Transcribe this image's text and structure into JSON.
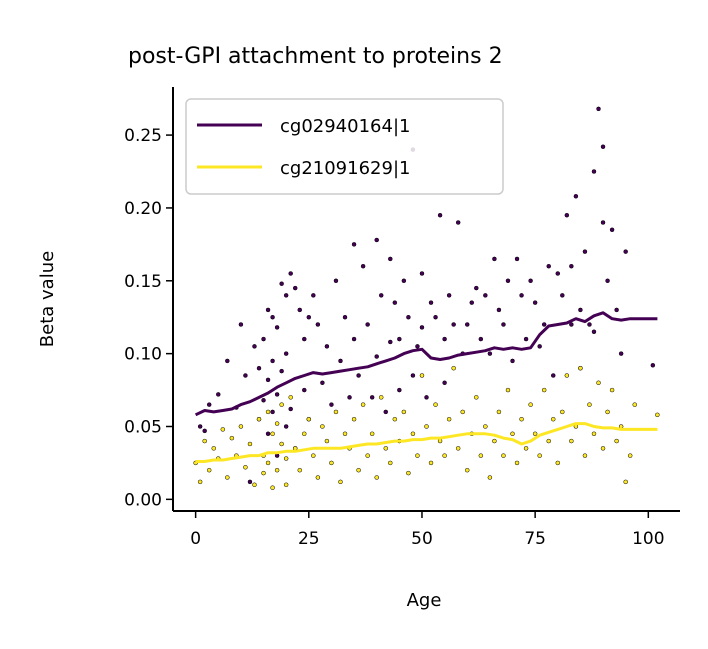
{
  "chart_data": {
    "type": "scatter",
    "title": "post-GPI attachment to proteins 2",
    "xlabel": "Age",
    "ylabel": "Beta value",
    "xlim": [
      -5,
      107
    ],
    "ylim": [
      -0.008,
      0.283
    ],
    "xticks": [
      0,
      25,
      50,
      75,
      100
    ],
    "xtick_labels": [
      "0",
      "25",
      "50",
      "75",
      "100"
    ],
    "yticks": [
      0.0,
      0.05,
      0.1,
      0.15,
      0.2,
      0.25
    ],
    "ytick_labels": [
      "0.00",
      "0.05",
      "0.10",
      "0.15",
      "0.20",
      "0.25"
    ],
    "grid": false,
    "legend_position": "top-left",
    "series": [
      {
        "name": "cg02940164|1",
        "color": "#440154",
        "trend": {
          "x": [
            0,
            2,
            4,
            6,
            8,
            10,
            12,
            14,
            16,
            18,
            20,
            22,
            24,
            26,
            28,
            30,
            32,
            34,
            36,
            38,
            40,
            42,
            44,
            46,
            48,
            50,
            52,
            54,
            56,
            58,
            60,
            62,
            64,
            66,
            68,
            70,
            72,
            74,
            76,
            78,
            80,
            82,
            84,
            86,
            88,
            90,
            92,
            94,
            96,
            98,
            100,
            102
          ],
          "y": [
            0.058,
            0.061,
            0.06,
            0.061,
            0.062,
            0.065,
            0.067,
            0.07,
            0.073,
            0.077,
            0.08,
            0.083,
            0.085,
            0.087,
            0.086,
            0.087,
            0.088,
            0.089,
            0.09,
            0.091,
            0.093,
            0.095,
            0.097,
            0.1,
            0.102,
            0.103,
            0.097,
            0.096,
            0.097,
            0.099,
            0.1,
            0.101,
            0.102,
            0.104,
            0.103,
            0.104,
            0.103,
            0.104,
            0.113,
            0.119,
            0.12,
            0.121,
            0.124,
            0.122,
            0.126,
            0.128,
            0.124,
            0.123,
            0.124,
            0.124,
            0.124,
            0.124
          ]
        },
        "points": {
          "x": [
            1,
            2,
            3,
            5,
            7,
            9,
            10,
            11,
            12,
            13,
            14,
            14,
            15,
            15,
            16,
            16,
            16,
            17,
            17,
            17,
            18,
            18,
            18,
            19,
            19,
            20,
            20,
            20,
            21,
            21,
            22,
            22,
            23,
            24,
            24,
            25,
            25,
            26,
            27,
            28,
            29,
            30,
            31,
            32,
            33,
            34,
            35,
            35,
            36,
            37,
            38,
            39,
            40,
            40,
            41,
            42,
            43,
            43,
            44,
            45,
            45,
            46,
            47,
            48,
            48,
            49,
            50,
            50,
            51,
            52,
            53,
            54,
            55,
            55,
            56,
            57,
            58,
            59,
            60,
            61,
            62,
            63,
            64,
            65,
            66,
            67,
            68,
            69,
            70,
            71,
            72,
            73,
            74,
            75,
            76,
            77,
            78,
            79,
            80,
            81,
            82,
            83,
            83,
            84,
            85,
            85,
            86,
            87,
            88,
            88,
            89,
            90,
            90,
            91,
            92,
            93,
            94,
            95,
            101
          ],
          "y": [
            0.05,
            0.047,
            0.065,
            0.072,
            0.095,
            0.063,
            0.12,
            0.085,
            0.012,
            0.105,
            0.09,
            0.055,
            0.11,
            0.068,
            0.13,
            0.082,
            0.045,
            0.125,
            0.095,
            0.06,
            0.118,
            0.072,
            0.03,
            0.148,
            0.088,
            0.14,
            0.1,
            0.05,
            0.155,
            0.062,
            0.145,
            0.035,
            0.13,
            0.11,
            0.075,
            0.125,
            0.055,
            0.14,
            0.12,
            0.08,
            0.105,
            0.065,
            0.15,
            0.095,
            0.125,
            0.07,
            0.175,
            0.11,
            0.085,
            0.16,
            0.12,
            0.07,
            0.178,
            0.098,
            0.14,
            0.06,
            0.165,
            0.108,
            0.135,
            0.11,
            0.075,
            0.15,
            0.125,
            0.24,
            0.085,
            0.105,
            0.155,
            0.118,
            0.07,
            0.135,
            0.125,
            0.195,
            0.11,
            0.08,
            0.14,
            0.12,
            0.19,
            0.1,
            0.12,
            0.135,
            0.145,
            0.11,
            0.14,
            0.1,
            0.165,
            0.13,
            0.12,
            0.15,
            0.095,
            0.165,
            0.14,
            0.11,
            0.15,
            0.135,
            0.105,
            0.12,
            0.16,
            0.085,
            0.155,
            0.14,
            0.195,
            0.16,
            0.12,
            0.208,
            0.13,
            0.09,
            0.17,
            0.12,
            0.225,
            0.115,
            0.268,
            0.19,
            0.242,
            0.15,
            0.185,
            0.13,
            0.1,
            0.17,
            0.092
          ]
        }
      },
      {
        "name": "cg21091629|1",
        "color": "#fde725",
        "trend": {
          "x": [
            0,
            2,
            4,
            6,
            8,
            10,
            12,
            14,
            16,
            18,
            20,
            22,
            24,
            26,
            28,
            30,
            32,
            34,
            36,
            38,
            40,
            42,
            44,
            46,
            48,
            50,
            52,
            54,
            56,
            58,
            60,
            62,
            64,
            66,
            68,
            70,
            72,
            74,
            76,
            78,
            80,
            82,
            84,
            86,
            88,
            90,
            92,
            94,
            96,
            98,
            100,
            102
          ],
          "y": [
            0.026,
            0.026,
            0.027,
            0.027,
            0.028,
            0.029,
            0.03,
            0.03,
            0.032,
            0.032,
            0.033,
            0.033,
            0.034,
            0.035,
            0.035,
            0.035,
            0.035,
            0.036,
            0.037,
            0.038,
            0.038,
            0.039,
            0.04,
            0.04,
            0.041,
            0.041,
            0.042,
            0.042,
            0.043,
            0.044,
            0.045,
            0.045,
            0.045,
            0.044,
            0.042,
            0.041,
            0.038,
            0.04,
            0.044,
            0.046,
            0.048,
            0.05,
            0.052,
            0.052,
            0.05,
            0.049,
            0.049,
            0.048,
            0.048,
            0.048,
            0.048,
            0.048
          ]
        },
        "points": {
          "x": [
            0,
            1,
            2,
            3,
            4,
            5,
            6,
            7,
            8,
            9,
            10,
            11,
            12,
            13,
            14,
            15,
            15,
            16,
            16,
            17,
            17,
            18,
            18,
            19,
            19,
            20,
            20,
            21,
            22,
            23,
            24,
            25,
            26,
            27,
            28,
            29,
            30,
            31,
            32,
            33,
            34,
            35,
            36,
            37,
            38,
            39,
            40,
            41,
            42,
            43,
            44,
            45,
            46,
            47,
            48,
            49,
            50,
            51,
            52,
            53,
            54,
            55,
            56,
            57,
            58,
            59,
            60,
            61,
            62,
            63,
            64,
            65,
            66,
            67,
            68,
            69,
            70,
            71,
            72,
            73,
            74,
            75,
            76,
            77,
            78,
            79,
            80,
            81,
            82,
            83,
            84,
            85,
            86,
            87,
            88,
            89,
            90,
            91,
            92,
            93,
            94,
            95,
            96,
            97,
            102
          ],
          "y": [
            0.025,
            0.012,
            0.04,
            0.02,
            0.035,
            0.028,
            0.048,
            0.015,
            0.042,
            0.03,
            0.05,
            0.022,
            0.038,
            0.01,
            0.055,
            0.03,
            0.018,
            0.06,
            0.025,
            0.045,
            0.008,
            0.052,
            0.02,
            0.038,
            0.065,
            0.028,
            0.01,
            0.07,
            0.035,
            0.02,
            0.045,
            0.055,
            0.03,
            0.015,
            0.05,
            0.04,
            0.025,
            0.06,
            0.012,
            0.045,
            0.035,
            0.055,
            0.02,
            0.065,
            0.03,
            0.045,
            0.015,
            0.07,
            0.035,
            0.025,
            0.055,
            0.04,
            0.06,
            0.018,
            0.045,
            0.03,
            0.085,
            0.05,
            0.025,
            0.065,
            0.04,
            0.03,
            0.055,
            0.09,
            0.035,
            0.06,
            0.02,
            0.045,
            0.07,
            0.03,
            0.05,
            0.015,
            0.04,
            0.06,
            0.03,
            0.075,
            0.045,
            0.025,
            0.055,
            0.035,
            0.065,
            0.045,
            0.03,
            0.075,
            0.04,
            0.055,
            0.025,
            0.06,
            0.085,
            0.04,
            0.05,
            0.09,
            0.03,
            0.065,
            0.045,
            0.08,
            0.035,
            0.06,
            0.075,
            0.04,
            0.05,
            0.012,
            0.03,
            0.065,
            0.058
          ]
        }
      }
    ]
  }
}
